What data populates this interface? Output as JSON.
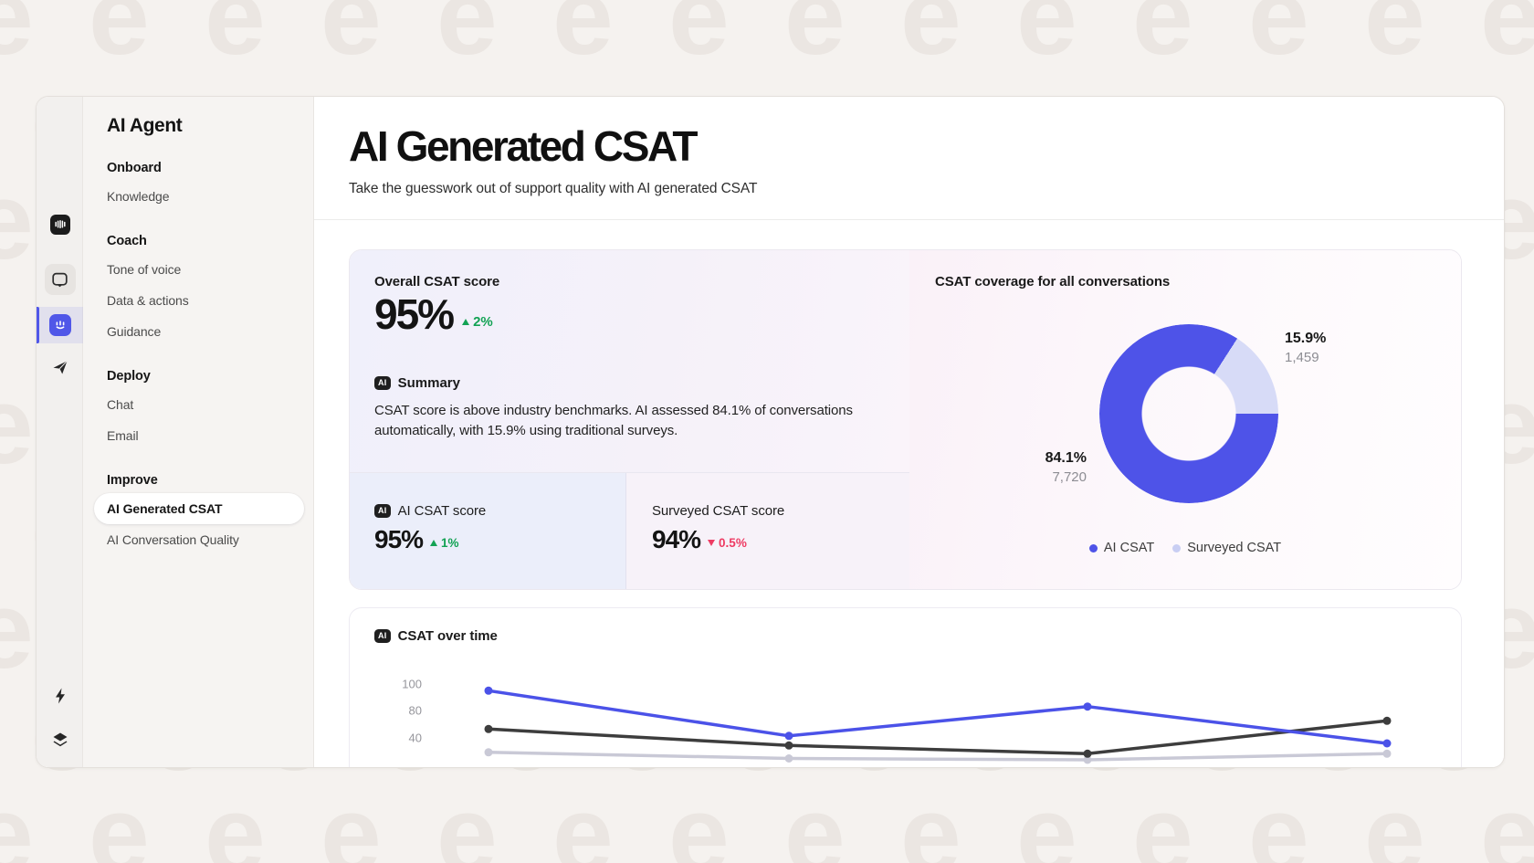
{
  "background": {
    "pattern_char": "e",
    "pattern_color": "#ebe6e2",
    "base_color": "#f5f2ef"
  },
  "rail": {
    "icons": [
      "intercom-logo",
      "messenger",
      "fin-ai-agent",
      "send",
      "lightning",
      "layers",
      "bar-chart",
      "people"
    ],
    "active_icon": "fin-ai-agent"
  },
  "sidebar": {
    "title": "AI Agent",
    "sections": [
      {
        "header": "Onboard",
        "items": [
          "Knowledge"
        ]
      },
      {
        "header": "Coach",
        "items": [
          "Tone of voice",
          "Data & actions",
          "Guidance"
        ]
      },
      {
        "header": "Deploy",
        "items": [
          "Chat",
          "Email"
        ]
      },
      {
        "header": "Improve",
        "items": [
          "AI Generated CSAT",
          "AI Conversation Quality"
        ]
      }
    ],
    "active_item": "AI Generated CSAT"
  },
  "header": {
    "title": "AI Generated CSAT",
    "subtitle": "Take the guesswork out of support quality with AI generated CSAT"
  },
  "overview": {
    "overall": {
      "label": "Overall CSAT score",
      "value": "95%",
      "delta": "2%",
      "direction": "up"
    },
    "summary": {
      "badge": "AI",
      "title": "Summary",
      "text": "CSAT score is above industry benchmarks. AI assessed 84.1% of conversations automatically, with 15.9% using traditional surveys."
    },
    "ai_score": {
      "badge": "AI",
      "label": "AI CSAT score",
      "value": "95%",
      "delta": "1%",
      "direction": "up"
    },
    "surveyed_score": {
      "label": "Surveyed CSAT score",
      "value": "94%",
      "delta": "0.5%",
      "direction": "down"
    }
  },
  "coverage": {
    "title": "CSAT coverage for all conversations",
    "callout_surveyed": {
      "pct": "15.9%",
      "count": "1,459"
    },
    "callout_ai": {
      "pct": "84.1%",
      "count": "7,720"
    },
    "legend": [
      {
        "label": "AI CSAT",
        "color": "#4e53e8"
      },
      {
        "label": "Surveyed CSAT",
        "color": "#c9cef3"
      }
    ]
  },
  "timeline": {
    "badge": "AI",
    "title": "CSAT over time"
  },
  "chart_data": [
    {
      "type": "pie",
      "subtype": "donut",
      "title": "CSAT coverage for all conversations",
      "slices": [
        {
          "label": "AI CSAT",
          "value": 84.1,
          "count": 7720,
          "color": "#4e53e8"
        },
        {
          "label": "Surveyed CSAT",
          "value": 15.9,
          "count": 1459,
          "color": "#d7dbf7"
        }
      ],
      "legend_position": "bottom"
    },
    {
      "type": "line",
      "title": "CSAT over time",
      "yticks": [
        100,
        80,
        40
      ],
      "x_count": 4,
      "grid": false,
      "clipped_at_bottom": true,
      "series": [
        {
          "name": "series-blue",
          "color": "#4b52e8",
          "values": [
            95,
            43,
            83,
            32
          ]
        },
        {
          "name": "series-dark",
          "color": "#3d3d3d",
          "values": [
            53,
            29,
            17,
            65
          ]
        },
        {
          "name": "series-gray",
          "color": "#c9c9d6",
          "values": [
            19,
            10,
            8,
            17
          ]
        }
      ]
    }
  ],
  "colors": {
    "accent_blue": "#4e53e8",
    "positive_green": "#13a254",
    "negative_red": "#ee3b63",
    "badge_black": "#1f1f1f"
  }
}
